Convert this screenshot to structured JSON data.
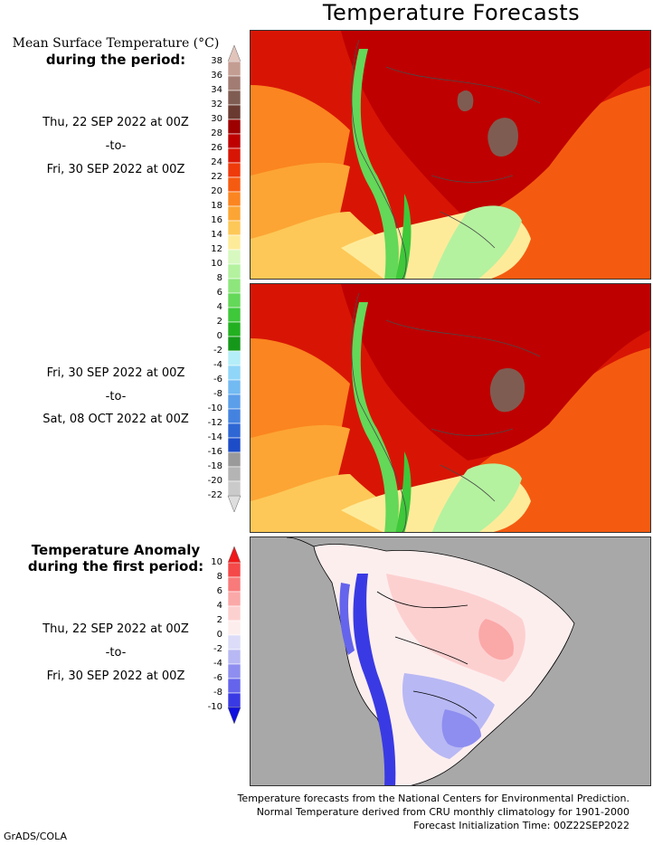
{
  "page": {
    "title": "Temperature Forecasts",
    "credit": "GrADS/COLA"
  },
  "mean_legend": {
    "title_line1": "Mean Surface Temperature (°C)",
    "title_line2": "during the period:",
    "unit": "°C",
    "ticks": [
      "38",
      "36",
      "34",
      "32",
      "30",
      "28",
      "26",
      "24",
      "22",
      "20",
      "18",
      "16",
      "14",
      "12",
      "10",
      "8",
      "6",
      "4",
      "2",
      "0",
      "-2",
      "-4",
      "-6",
      "-8",
      "-10",
      "-12",
      "-14",
      "-16",
      "-18",
      "-20",
      "-22"
    ],
    "colors": [
      "#e2c4bb",
      "#c49d92",
      "#a27c72",
      "#7f5c51",
      "#6a3a30",
      "#9e0000",
      "#be0000",
      "#d81505",
      "#ef3a0a",
      "#f55b10",
      "#fb8520",
      "#fca534",
      "#fdc857",
      "#feeb9a",
      "#d7f8bf",
      "#b4f29f",
      "#8de67c",
      "#64d858",
      "#3ec83a",
      "#22b020",
      "#15981a",
      "#b4eef8",
      "#90d6f8",
      "#72baf2",
      "#5b9eea",
      "#4482e0",
      "#2e66d4",
      "#1c4cc8",
      "#9a9a9a",
      "#b4b4b4",
      "#cacaca",
      "#dedede"
    ]
  },
  "periods": {
    "first": {
      "start": "Thu, 22 SEP 2022 at 00Z",
      "sep": "-to-",
      "end": "Fri, 30 SEP 2022 at 00Z"
    },
    "second": {
      "start": "Fri, 30 SEP 2022 at 00Z",
      "sep": "-to-",
      "end": "Sat, 08 OCT 2022 at 00Z"
    },
    "anomaly": {
      "start": "Thu, 22 SEP 2022 at 00Z",
      "sep": "-to-",
      "end": "Fri, 30 SEP 2022 at 00Z"
    }
  },
  "anomaly_legend": {
    "title_line1": "Temperature Anomaly",
    "title_line2": "during the first period:",
    "ticks": [
      "10",
      "8",
      "6",
      "4",
      "2",
      "0",
      "-2",
      "-4",
      "-6",
      "-8",
      "-10"
    ],
    "colors": [
      "#f01818",
      "#f54848",
      "#f87a7a",
      "#fba8a8",
      "#fdd0d0",
      "#fdeeee",
      "#dcdcf8",
      "#b8b8f4",
      "#8e8ef0",
      "#6464ec",
      "#3a3ae4",
      "#1010e0"
    ]
  },
  "footer": {
    "line1": "Temperature forecasts from the National Centers for Environmental Prediction.",
    "line2": "Normal Temperature derived from CRU monthly climatology for 1901-2000",
    "line3": "Forecast Initialization Time: 00Z22SEP2022"
  }
}
